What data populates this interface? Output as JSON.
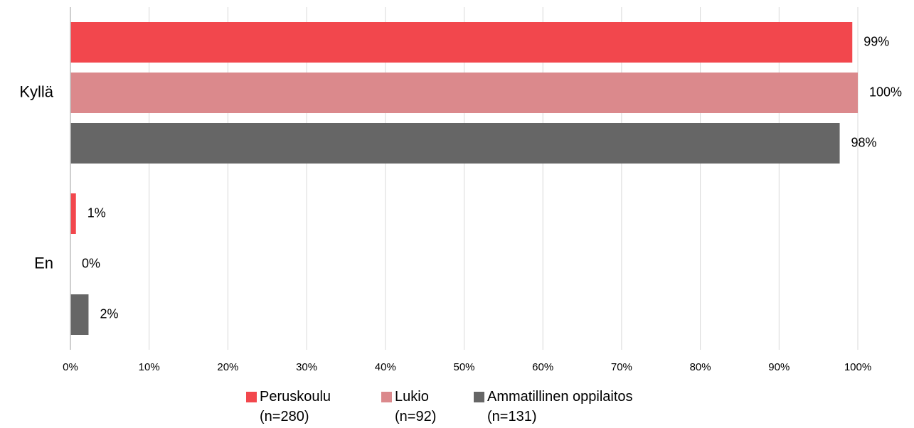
{
  "chart_data": {
    "type": "hbar",
    "categories": [
      "Kyllä",
      "En"
    ],
    "series": [
      {
        "name": "Peruskoulu\n(n=280)",
        "color": "#f2474d",
        "values": [
          99.3,
          0.7
        ],
        "value_labels": [
          "99%",
          "1%"
        ]
      },
      {
        "name": "Lukio\n(n=92)",
        "color": "#db898c",
        "values": [
          100,
          0
        ],
        "value_labels": [
          "100%",
          "0%"
        ]
      },
      {
        "name": "Ammatillinen oppilaitos\n(n=131)",
        "color": "#666666",
        "values": [
          97.7,
          2.3
        ],
        "value_labels": [
          "98%",
          "2%"
        ]
      }
    ],
    "xlim": [
      0,
      100
    ],
    "xticks": [
      {
        "value": 0,
        "label": "0%"
      },
      {
        "value": 10,
        "label": "10%"
      },
      {
        "value": 20,
        "label": "20%"
      },
      {
        "value": 30,
        "label": "30%"
      },
      {
        "value": 40,
        "label": "40%"
      },
      {
        "value": 50,
        "label": "50%"
      },
      {
        "value": 60,
        "label": "60%"
      },
      {
        "value": 70,
        "label": "70%"
      },
      {
        "value": 80,
        "label": "80%"
      },
      {
        "value": 90,
        "label": "90%"
      },
      {
        "value": 100,
        "label": "100%"
      }
    ],
    "grid": true,
    "legend": "bottom"
  }
}
